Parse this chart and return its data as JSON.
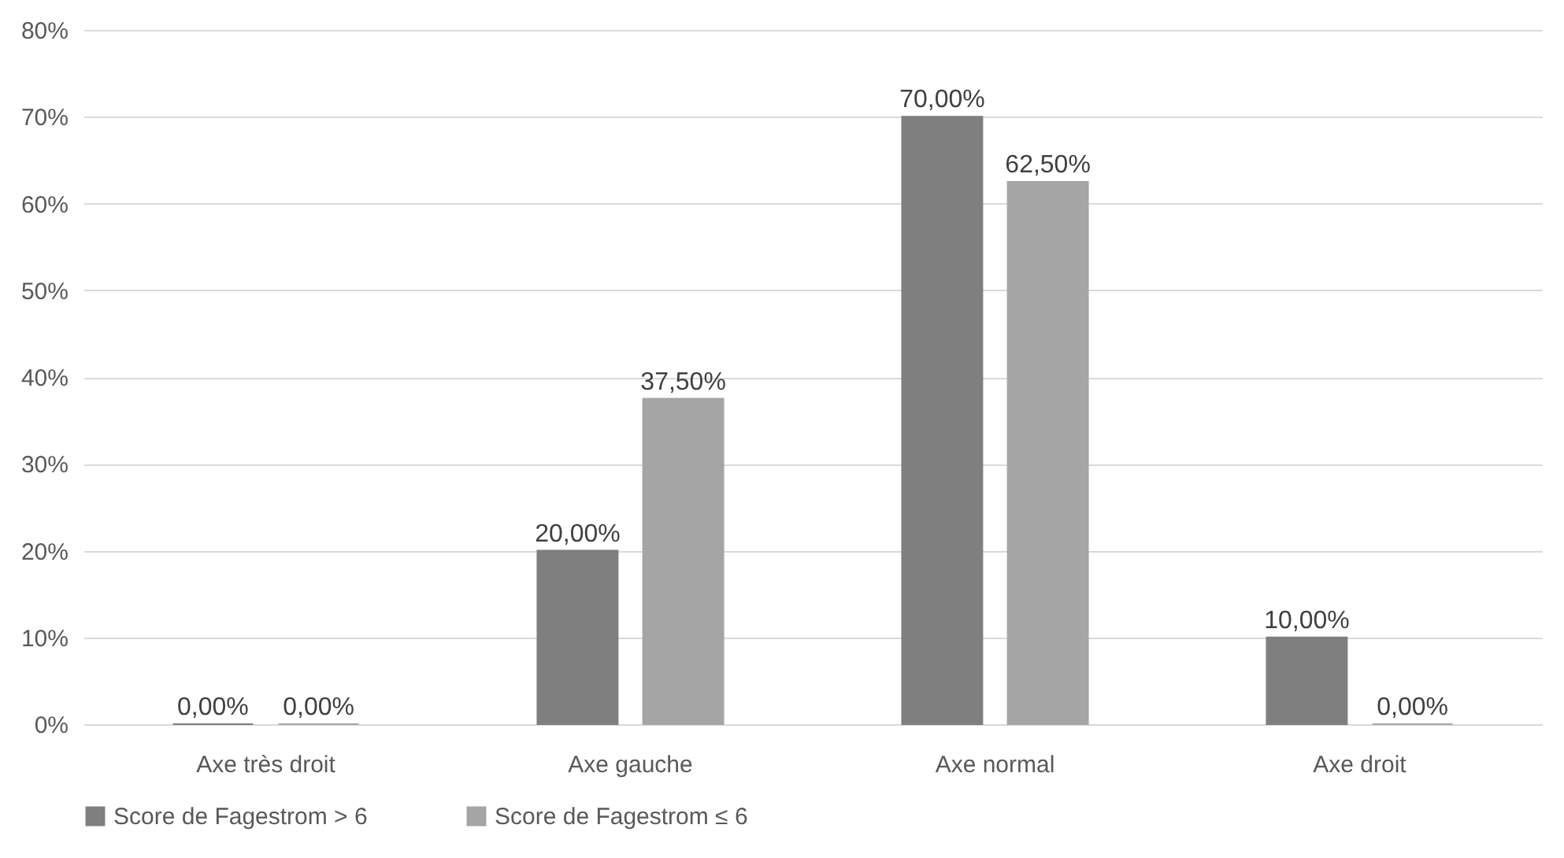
{
  "chart_data": {
    "type": "bar",
    "categories": [
      "Axe très droit",
      "Axe gauche",
      "Axe normal",
      "Axe droit"
    ],
    "series": [
      {
        "name": "Score de Fagestrom > 6",
        "color": "#7f7f7f",
        "values": [
          0,
          20,
          70,
          10
        ],
        "value_labels": [
          "0,00%",
          "20,00%",
          "70,00%",
          "10,00%"
        ]
      },
      {
        "name": "Score de Fagestrom ≤ 6",
        "color": "#a5a5a5",
        "values": [
          0,
          37.5,
          62.5,
          0
        ],
        "value_labels": [
          "0,00%",
          "37,50%",
          "62,50%",
          "0,00%"
        ]
      }
    ],
    "ylim": [
      0,
      80
    ],
    "yticks": [
      {
        "value": 0,
        "label": "0%"
      },
      {
        "value": 10,
        "label": "10%"
      },
      {
        "value": 20,
        "label": "20%"
      },
      {
        "value": 30,
        "label": "30%"
      },
      {
        "value": 40,
        "label": "40%"
      },
      {
        "value": 50,
        "label": "50%"
      },
      {
        "value": 60,
        "label": "60%"
      },
      {
        "value": 70,
        "label": "70%"
      },
      {
        "value": 80,
        "label": "80%"
      }
    ],
    "grid": "y",
    "legend": "bottom"
  }
}
